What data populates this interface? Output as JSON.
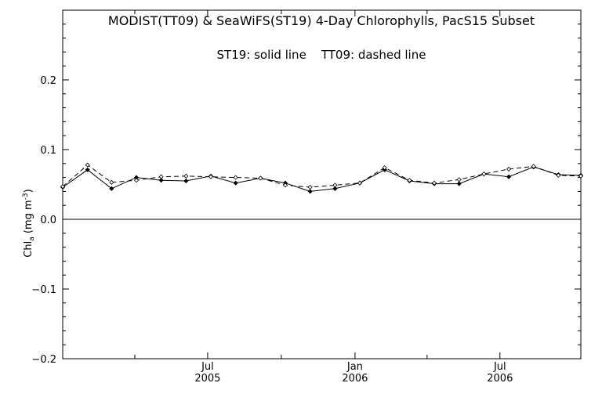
{
  "chart_data": {
    "type": "line",
    "title": "MODIST(TT09) & SeaWiFS(ST19) 4-Day Chlorophylls, PacS15 Subset",
    "legend_text": "ST19: solid line    TT09: dashed line",
    "ylabel_main": "Chl",
    "ylabel_sub": "a",
    "ylabel_units": " (mg m",
    "ylabel_sup": "-3",
    "ylabel_close": ")",
    "ylim": [
      -0.2,
      0.3
    ],
    "xlim": [
      "2005-01-01",
      "2006-10-10"
    ],
    "yticks": [
      {
        "value": -0.2,
        "label": "−0.2"
      },
      {
        "value": -0.1,
        "label": "−0.1"
      },
      {
        "value": 0.0,
        "label": "0.0"
      },
      {
        "value": 0.1,
        "label": "0.1"
      },
      {
        "value": 0.2,
        "label": "0.2"
      }
    ],
    "xticks_major": [
      {
        "date": "2005-07-01",
        "label": "Jul",
        "year": "2005"
      },
      {
        "date": "2006-01-01",
        "label": "Jan",
        "year": "2006"
      },
      {
        "date": "2006-07-01",
        "label": "Jul",
        "year": "2006"
      }
    ],
    "xticks_minor": [
      "2005-04-01",
      "2005-10-01",
      "2006-04-01"
    ],
    "zero_line": true,
    "series": [
      {
        "name": "ST19",
        "style": "solid",
        "color": "#000000",
        "x": [
          "2005-01-01",
          "2005-02-01",
          "2005-03-03",
          "2005-04-03",
          "2005-05-04",
          "2005-06-04",
          "2005-07-05",
          "2005-08-05",
          "2005-09-05",
          "2005-10-06",
          "2005-11-06",
          "2005-12-07",
          "2006-01-07",
          "2006-02-07",
          "2006-03-10",
          "2006-04-10",
          "2006-05-11",
          "2006-06-11",
          "2006-07-12",
          "2006-08-12",
          "2006-09-12",
          "2006-10-10"
        ],
        "y": [
          0.046,
          0.071,
          0.044,
          0.06,
          0.056,
          0.055,
          0.062,
          0.052,
          0.059,
          0.052,
          0.04,
          0.044,
          0.052,
          0.071,
          0.055,
          0.051,
          0.051,
          0.065,
          0.061,
          0.075,
          0.064,
          0.063
        ]
      },
      {
        "name": "TT09",
        "style": "dashed",
        "color": "#000000",
        "x": [
          "2005-01-01",
          "2005-02-01",
          "2005-03-03",
          "2005-04-03",
          "2005-05-04",
          "2005-06-04",
          "2005-07-05",
          "2005-08-05",
          "2005-09-05",
          "2005-10-06",
          "2005-11-06",
          "2005-12-07",
          "2006-01-07",
          "2006-02-07",
          "2006-03-10",
          "2006-04-10",
          "2006-05-11",
          "2006-06-11",
          "2006-07-12",
          "2006-08-12",
          "2006-09-12",
          "2006-10-10"
        ],
        "y": [
          0.047,
          0.078,
          0.053,
          0.056,
          0.061,
          0.062,
          0.061,
          0.06,
          0.059,
          0.049,
          0.046,
          0.049,
          0.052,
          0.074,
          0.056,
          0.052,
          0.057,
          0.065,
          0.072,
          0.076,
          0.063,
          0.062
        ]
      }
    ]
  }
}
